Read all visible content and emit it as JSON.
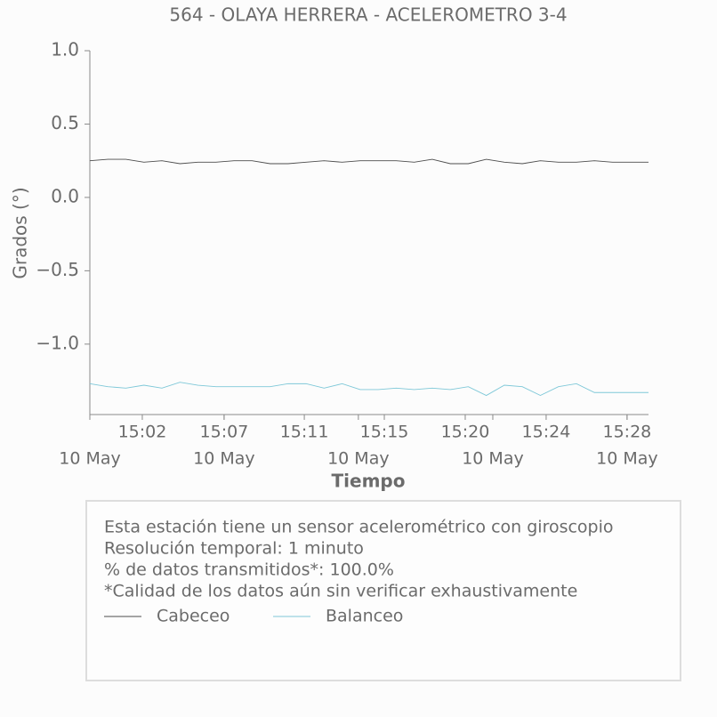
{
  "chart_data": {
    "type": "line",
    "title": "564 - OLAYA HERRERA - ACELEROMETRO 3-4",
    "xlabel": "Tiempo",
    "ylabel": "Grados (°)",
    "x": [
      "14:59",
      "15:00",
      "15:01",
      "15:02",
      "15:03",
      "15:04",
      "15:05",
      "15:06",
      "15:07",
      "15:08",
      "15:09",
      "15:10",
      "15:11",
      "15:12",
      "15:13",
      "15:14",
      "15:15",
      "15:16",
      "15:17",
      "15:18",
      "15:19",
      "15:20",
      "15:21",
      "15:22",
      "15:23",
      "15:24",
      "15:25",
      "15:26",
      "15:27",
      "15:28",
      "15:29",
      "15:30"
    ],
    "xlim": [
      0,
      31
    ],
    "xticks": [
      {
        "value": 2.91,
        "label": "15:02"
      },
      {
        "value": 7.45,
        "label": "15:07"
      },
      {
        "value": 11.9,
        "label": "15:11"
      },
      {
        "value": 16.34,
        "label": "15:15"
      },
      {
        "value": 20.83,
        "label": "15:20"
      },
      {
        "value": 25.32,
        "label": "15:24"
      },
      {
        "value": 29.81,
        "label": "15:28"
      }
    ],
    "xticks_date": [
      {
        "value": 0,
        "label": "10 May"
      },
      {
        "value": 7.45,
        "label": "10 May"
      },
      {
        "value": 14.9,
        "label": "10 May"
      },
      {
        "value": 22.36,
        "label": "10 May"
      },
      {
        "value": 29.81,
        "label": "10 May"
      }
    ],
    "ylim": [
      -1.48,
      1.0
    ],
    "yticks": [
      {
        "value": 1.0,
        "label": "1.0"
      },
      {
        "value": 0.5,
        "label": "0.5"
      },
      {
        "value": 0,
        "label": "0.0"
      },
      {
        "value": -0.5,
        "label": "−0.5"
      },
      {
        "value": -1.0,
        "label": "−1.0"
      }
    ],
    "series": [
      {
        "name": "Cabeceo",
        "color": "#4d4d4d",
        "values": [
          0.25,
          0.26,
          0.26,
          0.24,
          0.25,
          0.23,
          0.24,
          0.24,
          0.25,
          0.25,
          0.23,
          0.23,
          0.24,
          0.25,
          0.24,
          0.25,
          0.25,
          0.25,
          0.24,
          0.26,
          0.23,
          0.23,
          0.26,
          0.24,
          0.23,
          0.25,
          0.24,
          0.24,
          0.25,
          0.24,
          0.24,
          0.24
        ]
      },
      {
        "name": "Balanceo",
        "color": "#7ec8d8",
        "values": [
          -1.27,
          -1.29,
          -1.3,
          -1.28,
          -1.3,
          -1.26,
          -1.28,
          -1.29,
          -1.29,
          -1.29,
          -1.29,
          -1.27,
          -1.27,
          -1.3,
          -1.27,
          -1.31,
          -1.31,
          -1.3,
          -1.31,
          -1.3,
          -1.31,
          -1.29,
          -1.35,
          -1.28,
          -1.29,
          -1.35,
          -1.29,
          -1.27,
          -1.33,
          -1.33,
          -1.33,
          -1.33
        ]
      }
    ],
    "notes": [
      "Esta estación tiene un sensor acelerométrico con giroscopio",
      "Resolución temporal: 1 minuto",
      "% de datos transmitidos*: 100.0%",
      "*Calidad de los datos aún sin verificar exhaustivamente"
    ]
  }
}
